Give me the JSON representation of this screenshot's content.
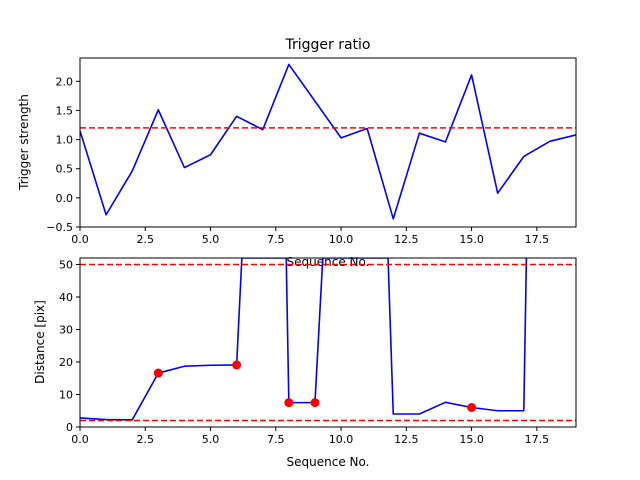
{
  "chart_data": [
    {
      "type": "line",
      "title": "Trigger ratio",
      "xlabel": "Sequence No.",
      "ylabel": "Trigger strength",
      "xlim": [
        0,
        19
      ],
      "ylim": [
        -0.5,
        2.4
      ],
      "xticks": [
        0.0,
        2.5,
        5.0,
        7.5,
        10.0,
        12.5,
        15.0,
        17.5
      ],
      "xtick_labels": [
        "0.0",
        "2.5",
        "5.0",
        "7.5",
        "10.0",
        "12.5",
        "15.0",
        "17.5"
      ],
      "yticks": [
        -0.5,
        0.0,
        0.5,
        1.0,
        1.5,
        2.0
      ],
      "ytick_labels": [
        "−0.5",
        "0.0",
        "0.5",
        "1.0",
        "1.5",
        "2.0"
      ],
      "grid": false,
      "series": [
        {
          "color": "#0000ff",
          "x": [
            0,
            1,
            2,
            3,
            4,
            5,
            6,
            7,
            8,
            9,
            10,
            11,
            12,
            13,
            14,
            15,
            16,
            17,
            18,
            19
          ],
          "y": [
            1.15,
            -0.29,
            0.46,
            1.51,
            0.52,
            0.74,
            1.4,
            1.17,
            2.29,
            1.66,
            1.03,
            1.19,
            -0.36,
            1.11,
            0.96,
            2.11,
            0.08,
            0.71,
            0.97,
            1.08
          ]
        }
      ],
      "hlines": [
        {
          "y": 1.2,
          "color": "#ff0000",
          "style": "dashed"
        }
      ]
    },
    {
      "type": "line",
      "title": "",
      "xlabel": "Sequence No.",
      "ylabel": "Distance [pix]",
      "xlim": [
        0,
        19
      ],
      "ylim": [
        0,
        52
      ],
      "xticks": [
        0.0,
        2.5,
        5.0,
        7.5,
        10.0,
        12.5,
        15.0,
        17.5
      ],
      "xtick_labels": [
        "0.0",
        "2.5",
        "5.0",
        "7.5",
        "10.0",
        "12.5",
        "15.0",
        "17.5"
      ],
      "yticks": [
        0,
        10,
        20,
        30,
        40,
        50
      ],
      "ytick_labels": [
        "0",
        "10",
        "20",
        "30",
        "40",
        "50"
      ],
      "grid": false,
      "series": [
        {
          "color": "#0000ff",
          "x": [
            0,
            1,
            2,
            3,
            4,
            5,
            6,
            6.2,
            7.9,
            8,
            9,
            9.3,
            11.8,
            12,
            13,
            14,
            15,
            16,
            17,
            17.1
          ],
          "y": [
            2.8,
            2.3,
            2.2,
            16.6,
            18.7,
            19.0,
            19.1,
            52,
            52,
            7.5,
            7.5,
            52,
            52,
            4.0,
            4.0,
            7.6,
            6.0,
            5.0,
            5.0,
            52
          ]
        }
      ],
      "markers": {
        "color": "#ff0000",
        "points": [
          {
            "x": 3,
            "y": 16.6
          },
          {
            "x": 6,
            "y": 19.1
          },
          {
            "x": 8,
            "y": 7.5
          },
          {
            "x": 9,
            "y": 7.5
          },
          {
            "x": 15,
            "y": 6.0
          }
        ]
      },
      "hlines": [
        {
          "y": 50,
          "color": "#ff0000",
          "style": "dashed"
        },
        {
          "y": 2,
          "color": "#ff0000",
          "style": "dashed"
        }
      ]
    }
  ]
}
